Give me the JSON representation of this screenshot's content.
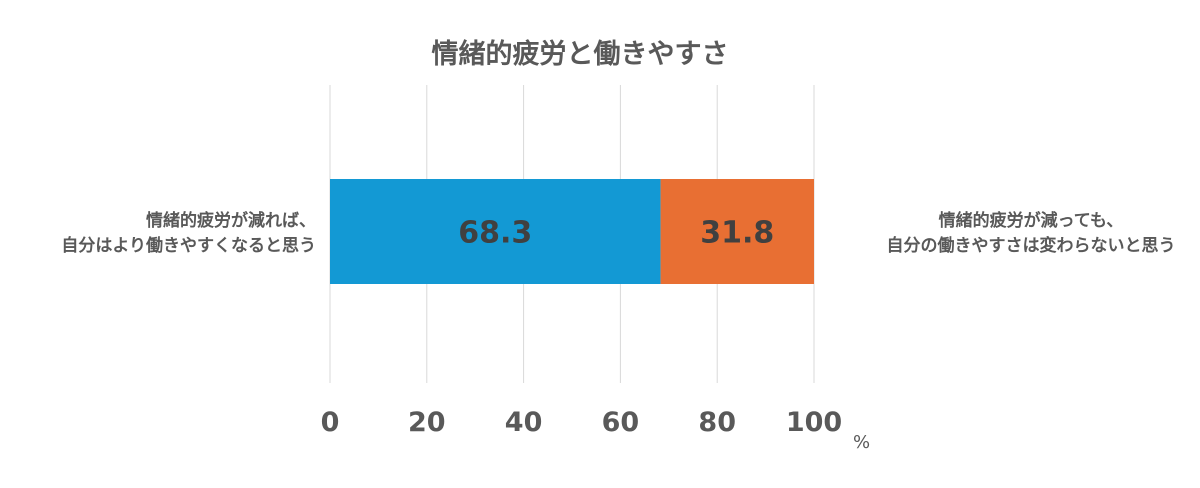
{
  "chart_data": {
    "type": "bar",
    "orientation": "horizontal",
    "stacked": true,
    "title": "情緒的疲労と働きやすさ",
    "series": [
      {
        "name": "情緒的疲労が減れば、自分はより働きやすくなると思う",
        "label_lines": [
          "情緒的疲労が減れば、",
          "自分はより働きやすくなると思う"
        ],
        "value": 68.3,
        "color": "#1399d4"
      },
      {
        "name": "情緒的疲労が減っても、自分の働きやすさは変わらないと思う",
        "label_lines": [
          "情緒的疲労が減っても、",
          "自分の働きやすさは変わらないと思う"
        ],
        "value": 31.8,
        "color": "#e86f33"
      }
    ],
    "xlim": [
      0,
      100
    ],
    "xticks": [
      0,
      20,
      40,
      60,
      80,
      100
    ],
    "x_unit": "%",
    "grid": true,
    "data_labels": [
      "68.3",
      "31.8"
    ]
  }
}
